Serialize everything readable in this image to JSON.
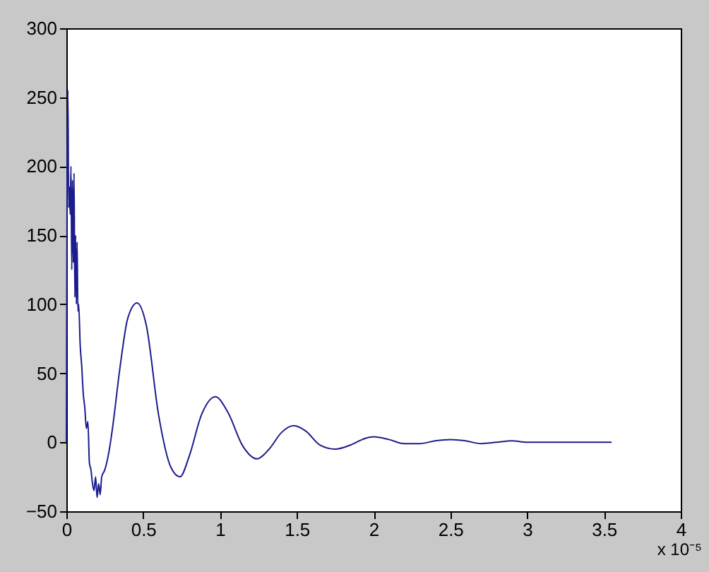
{
  "chart_data": {
    "type": "line",
    "series": [
      {
        "color": "#1c1c8c",
        "x": [
          0,
          0.005,
          0.01,
          0.015,
          0.02,
          0.025,
          0.03,
          0.035,
          0.04,
          0.045,
          0.05,
          0.055,
          0.06,
          0.065,
          0.07,
          0.075,
          0.08,
          0.09,
          0.1,
          0.11,
          0.12,
          0.13,
          0.14,
          0.15,
          0.16,
          0.17,
          0.18,
          0.19,
          0.2,
          0.21,
          0.22,
          0.23,
          0.25,
          0.28,
          0.3,
          0.35,
          0.4,
          0.46,
          0.52,
          0.6,
          0.68,
          0.74,
          0.8,
          0.88,
          0.97,
          1.05,
          1.15,
          1.24,
          1.32,
          1.4,
          1.48,
          1.56,
          1.65,
          1.75,
          1.85,
          1.95,
          2.0,
          2.1,
          2.2,
          2.3,
          2.4,
          2.5,
          2.6,
          2.7,
          2.8,
          2.9,
          3.0,
          3.2,
          3.4,
          3.55
        ],
        "values": [
          0,
          200,
          255,
          170,
          185,
          165,
          200,
          125,
          190,
          130,
          195,
          105,
          150,
          100,
          145,
          95,
          100,
          70,
          55,
          35,
          25,
          10,
          15,
          -15,
          -20,
          -30,
          -35,
          -25,
          -40,
          -30,
          -38,
          -25,
          -20,
          -5,
          10,
          55,
          90,
          101,
          85,
          20,
          -18,
          -25,
          -10,
          20,
          33,
          22,
          -3,
          -12,
          -5,
          7,
          12,
          8,
          -2,
          -5,
          -2,
          3,
          4,
          2,
          -1,
          -1,
          1,
          2,
          1,
          -1,
          0,
          1,
          0,
          0,
          0,
          0
        ]
      }
    ],
    "xlim": [
      0,
      4
    ],
    "xticks": [
      0,
      0.5,
      1,
      1.5,
      2,
      2.5,
      3,
      3.5,
      4
    ],
    "ylim": [
      -50,
      300
    ],
    "yticks": [
      -50,
      0,
      50,
      100,
      150,
      200,
      250,
      300
    ],
    "grid": false,
    "annotations": [
      "x 10⁻⁵"
    ]
  }
}
